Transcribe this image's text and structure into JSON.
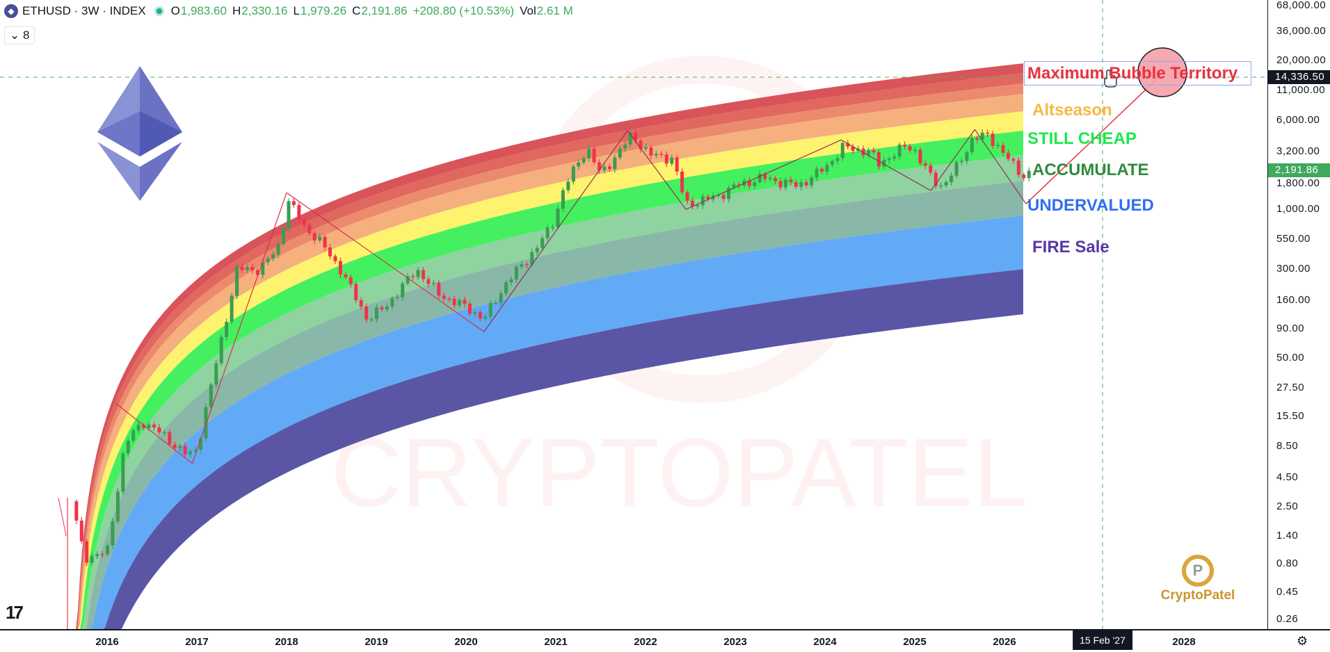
{
  "header": {
    "symbol": "ETHUSD · 3W · INDEX",
    "open_label": "O",
    "open": "1,983.60",
    "high_label": "H",
    "high": "2,330.16",
    "low_label": "L",
    "low": "1,979.26",
    "close_label": "C",
    "close": "2,191.86",
    "change": "+208.80 (+10.53%)",
    "vol_label": "Vol",
    "vol": "2.61 M",
    "indicators_toggle": "⌄ 8"
  },
  "zones": {
    "bubble": "Maximum Bubble Territory",
    "altseason": "Altseason",
    "still_cheap": "STILL CHEAP",
    "accumulate": "ACCUMULATE",
    "undervalued": "UNDERVALUED",
    "fire_sale": "FIRE Sale"
  },
  "colors": {
    "bubble": "#e8303f",
    "altseason": "#f5b942",
    "still_cheap": "#1ee84a",
    "accumulate": "#2e8b3e",
    "undervalued": "#2f6ff0",
    "fire_sale": "#5a35a8",
    "up": "#3a9c52",
    "down": "#f0334a",
    "bands": [
      "#d9545a",
      "#e0685e",
      "#ec8a6e",
      "#f5b07d",
      "#fef36e",
      "#45f060",
      "#8fd3a0",
      "#8ab8a8",
      "#62aaf5",
      "#5a56a5",
      "#7d72cc"
    ]
  },
  "watermark": "CRYPTOPATEL",
  "logo_text": "CryptoPatel",
  "tv_logo": "TV",
  "chart_data": {
    "type": "candlestick",
    "y_scale": "log",
    "y_ticks": [
      "68,000.00",
      "36,000.00",
      "20,000.00",
      "11,000.00",
      "6,000.00",
      "3,200.00",
      "1,800.00",
      "1,000.00",
      "550.00",
      "300.00",
      "160.00",
      "90.00",
      "50.00",
      "27.50",
      "15.50",
      "8.50",
      "4.50",
      "2.50",
      "1.40",
      "0.80",
      "0.45",
      "0.26"
    ],
    "x_ticks": [
      "2016",
      "2017",
      "2018",
      "2019",
      "2020",
      "2021",
      "2022",
      "2023",
      "2024",
      "2025",
      "2026",
      "2028"
    ],
    "crosshair_date": "15 Feb '27",
    "crosshair_price": "14,336.50",
    "last_price": "2,191.86",
    "price_path": [
      [
        2015.6,
        2.8
      ],
      [
        2015.75,
        0.9
      ],
      [
        2016.0,
        1.0
      ],
      [
        2016.2,
        9
      ],
      [
        2016.4,
        14
      ],
      [
        2016.6,
        11
      ],
      [
        2016.9,
        7
      ],
      [
        2017.0,
        8
      ],
      [
        2017.2,
        40
      ],
      [
        2017.45,
        300
      ],
      [
        2017.7,
        300
      ],
      [
        2017.9,
        450
      ],
      [
        2018.02,
        1200
      ],
      [
        2018.2,
        700
      ],
      [
        2018.35,
        550
      ],
      [
        2018.6,
        300
      ],
      [
        2018.9,
        110
      ],
      [
        2019.1,
        140
      ],
      [
        2019.45,
        300
      ],
      [
        2019.7,
        180
      ],
      [
        2020.0,
        140
      ],
      [
        2020.2,
        110
      ],
      [
        2020.45,
        230
      ],
      [
        2020.7,
        380
      ],
      [
        2020.95,
        700
      ],
      [
        2021.1,
        1600
      ],
      [
        2021.35,
        3500
      ],
      [
        2021.5,
        2000
      ],
      [
        2021.85,
        4500
      ],
      [
        2022.05,
        3000
      ],
      [
        2022.3,
        2800
      ],
      [
        2022.45,
        1100
      ],
      [
        2022.8,
        1300
      ],
      [
        2023.0,
        1600
      ],
      [
        2023.3,
        1900
      ],
      [
        2023.7,
        1600
      ],
      [
        2024.0,
        2300
      ],
      [
        2024.2,
        3500
      ],
      [
        2024.5,
        3200
      ],
      [
        2024.6,
        2500
      ],
      [
        2024.9,
        3600
      ],
      [
        2025.0,
        3300
      ],
      [
        2025.2,
        1800
      ],
      [
        2025.3,
        1600
      ],
      [
        2025.5,
        2500
      ],
      [
        2025.65,
        4300
      ],
      [
        2025.8,
        4400
      ],
      [
        2025.95,
        3500
      ],
      [
        2026.1,
        2400
      ],
      [
        2026.2,
        1950
      ],
      [
        2026.3,
        2192
      ]
    ],
    "zigzag": [
      [
        2016.1,
        20
      ],
      [
        2016.95,
        6
      ],
      [
        2018.0,
        1400
      ],
      [
        2020.2,
        85
      ],
      [
        2021.8,
        4900
      ],
      [
        2022.45,
        1000
      ],
      [
        2024.18,
        4050
      ],
      [
        2025.18,
        1460
      ],
      [
        2025.67,
        5000
      ],
      [
        2026.24,
        1120
      ]
    ],
    "target_line": [
      [
        2026.24,
        1120
      ],
      [
        2027.78,
        15900
      ]
    ]
  }
}
